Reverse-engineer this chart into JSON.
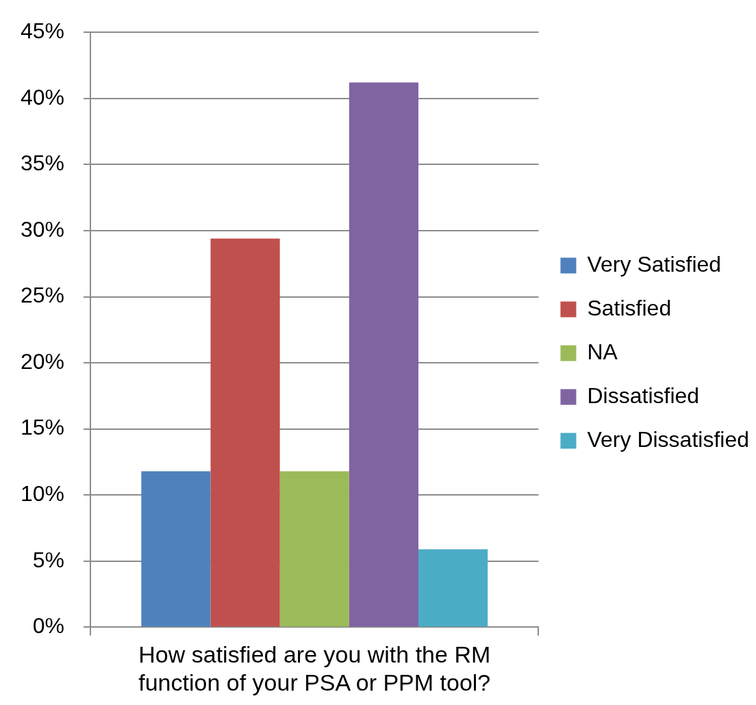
{
  "chart_data": {
    "type": "bar",
    "categories": [
      "How satisfied are you with the RM function of your PSA or PPM tool?"
    ],
    "series": [
      {
        "name": "Very Satisfied",
        "color": "#4f81bd",
        "values": [
          11.8
        ]
      },
      {
        "name": "Satisfied",
        "color": "#c0504d",
        "values": [
          29.4
        ]
      },
      {
        "name": "NA",
        "color": "#9bbb59",
        "values": [
          11.8
        ]
      },
      {
        "name": "Dissatisfied",
        "color": "#8064a2",
        "values": [
          41.2
        ]
      },
      {
        "name": "Very Dissatisfied",
        "color": "#4bacc6",
        "values": [
          5.9
        ]
      }
    ],
    "ylim": [
      0,
      45
    ],
    "yticks": [
      {
        "value": 0,
        "label": "0%"
      },
      {
        "value": 5,
        "label": "5%"
      },
      {
        "value": 10,
        "label": "10%"
      },
      {
        "value": 15,
        "label": "15%"
      },
      {
        "value": 20,
        "label": "20%"
      },
      {
        "value": 25,
        "label": "25%"
      },
      {
        "value": 30,
        "label": "30%"
      },
      {
        "value": 35,
        "label": "35%"
      },
      {
        "value": 40,
        "label": "40%"
      },
      {
        "value": 45,
        "label": "45%"
      }
    ],
    "grid": "y",
    "legend": "right"
  }
}
